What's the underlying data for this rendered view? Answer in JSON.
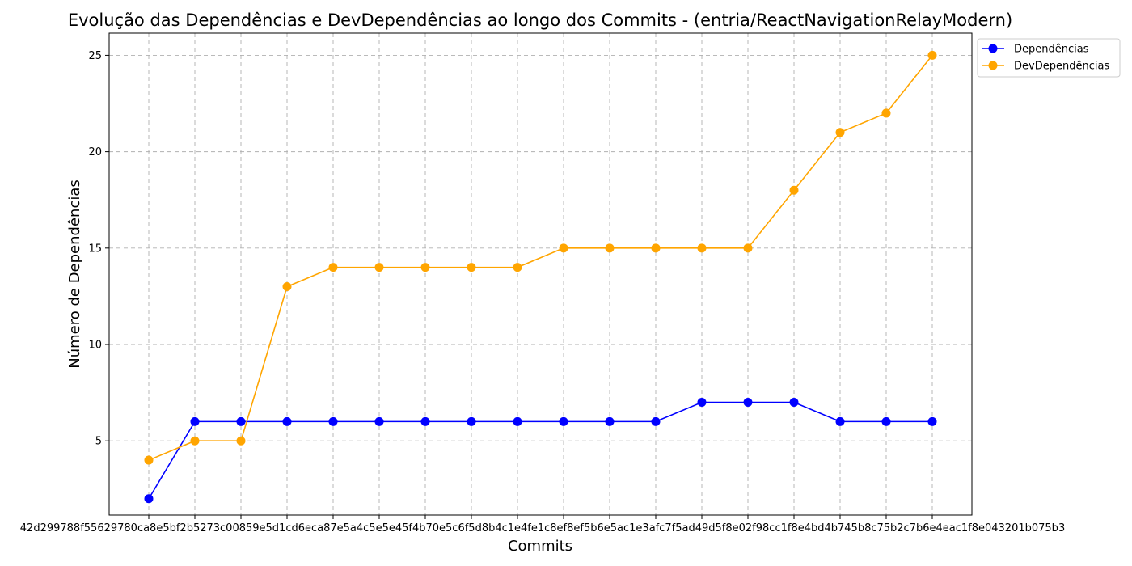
{
  "chart_data": {
    "type": "line",
    "title": "Evolução das Dependências e DevDependências ao longo dos Commits - (entria/ReactNavigationRelayModern)",
    "xlabel": "Commits",
    "ylabel": "Número de Dependências",
    "x_tick_text": "42d299788f55629780ca8e5bf2b5273c00859e5d1cd6eca87e5a4c5e5e45f4b70e5c6f5d8b4c1e4fe1c8ef8ef5b6e5ac1e3afc7f5ad49d5f8e02f98cc1f8e4bd4b745b8c75b2c7b6e4eac1f8e043201b075b3",
    "ylim": [
      1.15,
      26.15
    ],
    "yticks": [
      5,
      10,
      15,
      20,
      25
    ],
    "grid": true,
    "legend_position": "top-right",
    "series": [
      {
        "name": "Dependências",
        "color": "#0000ff",
        "values": [
          2,
          6,
          6,
          6,
          6,
          6,
          6,
          6,
          6,
          6,
          6,
          6,
          7,
          7,
          7,
          6,
          6,
          6
        ]
      },
      {
        "name": "DevDependências",
        "color": "#ffa500",
        "values": [
          4,
          5,
          5,
          13,
          14,
          14,
          14,
          14,
          14,
          15,
          15,
          15,
          15,
          15,
          18,
          21,
          22,
          25
        ]
      }
    ]
  }
}
